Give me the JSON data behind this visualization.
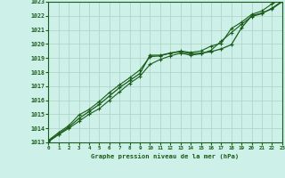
{
  "title": "Graphe pression niveau de la mer (hPa)",
  "bg_color": "#cdf0e8",
  "grid_color": "#b0d8c8",
  "line_color": "#1a5c1a",
  "xlim": [
    0,
    23
  ],
  "ylim": [
    1013,
    1023
  ],
  "xticks": [
    0,
    1,
    2,
    3,
    4,
    5,
    6,
    7,
    8,
    9,
    10,
    11,
    12,
    13,
    14,
    15,
    16,
    17,
    18,
    19,
    20,
    21,
    22,
    23
  ],
  "yticks": [
    1013,
    1014,
    1015,
    1016,
    1017,
    1018,
    1019,
    1020,
    1021,
    1022,
    1023
  ],
  "hours": [
    0,
    1,
    2,
    3,
    4,
    5,
    6,
    7,
    8,
    9,
    10,
    11,
    12,
    13,
    14,
    15,
    16,
    17,
    18,
    19,
    20,
    21,
    22,
    23
  ],
  "line_main": [
    1013.1,
    1013.6,
    1014.1,
    1014.7,
    1015.2,
    1015.7,
    1016.3,
    1016.9,
    1017.4,
    1017.9,
    1019.2,
    1019.2,
    1019.35,
    1019.45,
    1019.3,
    1019.35,
    1019.45,
    1019.65,
    1019.95,
    1021.15,
    1022.0,
    1022.2,
    1022.5,
    1023.0
  ],
  "line_upper": [
    1013.05,
    1013.55,
    1014.0,
    1014.5,
    1015.0,
    1015.4,
    1016.0,
    1016.6,
    1017.2,
    1017.7,
    1018.55,
    1018.9,
    1019.15,
    1019.35,
    1019.2,
    1019.3,
    1019.55,
    1020.2,
    1020.8,
    1021.4,
    1021.95,
    1022.15,
    1022.55,
    1023.05
  ],
  "line_lower": [
    1013.15,
    1013.7,
    1014.2,
    1014.95,
    1015.35,
    1015.9,
    1016.55,
    1017.1,
    1017.6,
    1018.15,
    1019.1,
    1019.15,
    1019.35,
    1019.5,
    1019.4,
    1019.5,
    1019.85,
    1020.05,
    1021.1,
    1021.55,
    1022.1,
    1022.35,
    1022.85,
    1023.2
  ]
}
